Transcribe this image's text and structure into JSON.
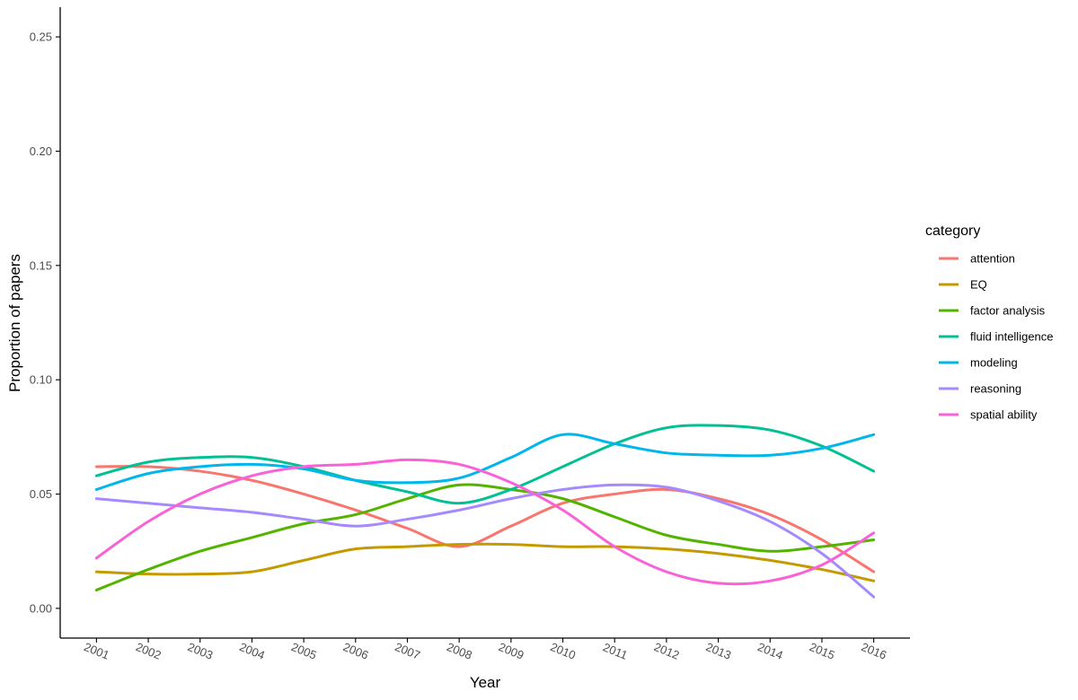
{
  "chart_data": {
    "type": "line",
    "xlabel": "Year",
    "ylabel": "Proportion of papers",
    "x": [
      2001,
      2002,
      2003,
      2004,
      2005,
      2006,
      2007,
      2008,
      2009,
      2010,
      2011,
      2012,
      2013,
      2014,
      2015,
      2016
    ],
    "xlim": [
      2000.3,
      2016.7
    ],
    "ylim": [
      -0.013,
      0.263
    ],
    "yticks": [
      0.0,
      0.05,
      0.1,
      0.15,
      0.2,
      0.25
    ],
    "ytick_labels": [
      "0.00",
      "0.05",
      "0.10",
      "0.15",
      "0.20",
      "0.25"
    ],
    "xtick_labels": [
      "2001",
      "2002",
      "2003",
      "2004",
      "2005",
      "2006",
      "2007",
      "2008",
      "2009",
      "2010",
      "2011",
      "2012",
      "2013",
      "2014",
      "2015",
      "2016"
    ],
    "grid": false,
    "legend": {
      "title": "category",
      "placement": "right"
    },
    "series": [
      {
        "name": "attention",
        "color": "#F8766D",
        "values": [
          0.062,
          0.062,
          0.06,
          0.056,
          0.05,
          0.043,
          0.035,
          0.027,
          0.036,
          0.046,
          0.05,
          0.052,
          0.048,
          0.041,
          0.03,
          0.016
        ]
      },
      {
        "name": "EQ",
        "color": "#C49A00",
        "values": [
          0.016,
          0.015,
          0.015,
          0.016,
          0.021,
          0.026,
          0.027,
          0.028,
          0.028,
          0.027,
          0.027,
          0.026,
          0.024,
          0.021,
          0.017,
          0.012
        ]
      },
      {
        "name": "factor analysis",
        "color": "#53B400",
        "values": [
          0.008,
          0.017,
          0.025,
          0.031,
          0.037,
          0.041,
          0.048,
          0.054,
          0.052,
          0.048,
          0.04,
          0.032,
          0.028,
          0.025,
          0.027,
          0.03
        ]
      },
      {
        "name": "fluid intelligence",
        "color": "#00C094",
        "values": [
          0.058,
          0.064,
          0.066,
          0.066,
          0.062,
          0.056,
          0.051,
          0.046,
          0.052,
          0.062,
          0.072,
          0.079,
          0.08,
          0.078,
          0.071,
          0.06
        ]
      },
      {
        "name": "modeling",
        "color": "#00B6EB",
        "values": [
          0.052,
          0.059,
          0.062,
          0.063,
          0.061,
          0.056,
          0.055,
          0.057,
          0.066,
          0.076,
          0.072,
          0.068,
          0.067,
          0.067,
          0.07,
          0.076
        ]
      },
      {
        "name": "reasoning",
        "color": "#A58AFF",
        "values": [
          0.048,
          0.046,
          0.044,
          0.042,
          0.039,
          0.036,
          0.039,
          0.043,
          0.048,
          0.052,
          0.054,
          0.053,
          0.047,
          0.038,
          0.024,
          0.005
        ]
      },
      {
        "name": "spatial ability",
        "color": "#FB61D7",
        "values": [
          0.022,
          0.038,
          0.05,
          0.058,
          0.062,
          0.063,
          0.065,
          0.063,
          0.055,
          0.043,
          0.027,
          0.016,
          0.011,
          0.012,
          0.019,
          0.033
        ]
      }
    ]
  }
}
